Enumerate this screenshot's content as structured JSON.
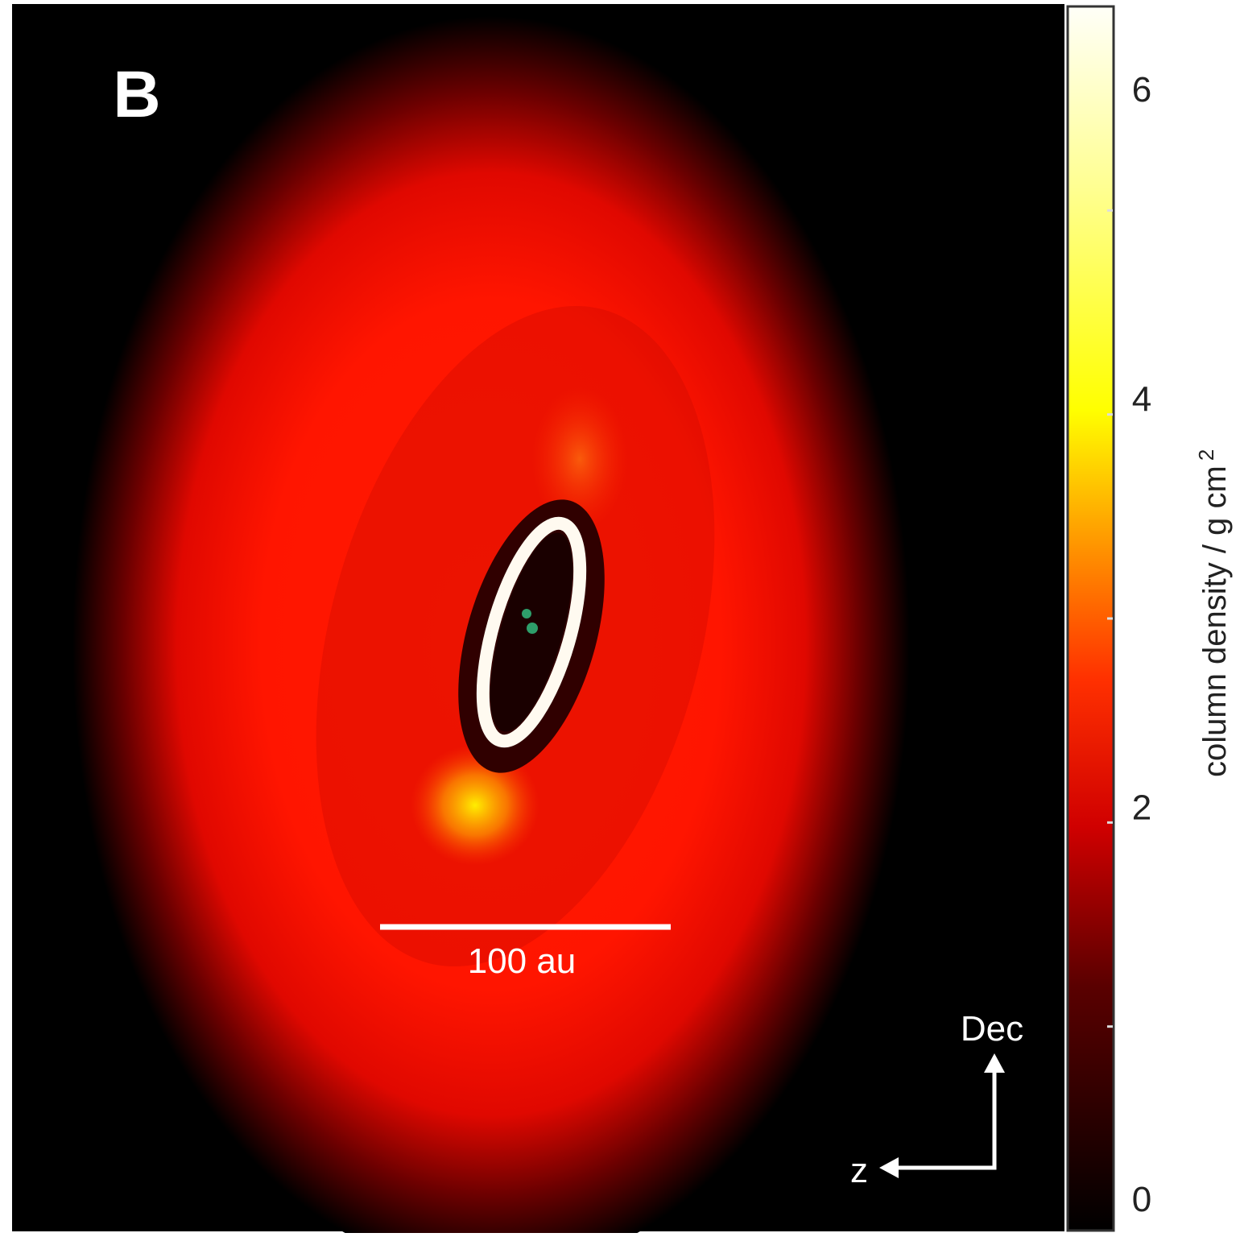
{
  "panel_label": "B",
  "scale_bar": "100 au",
  "compass": {
    "north": "Dec",
    "east": "z"
  },
  "chart_data": {
    "type": "image",
    "colorbar": {
      "label": "column density / g cm",
      "label_exponent": "2",
      "clim": [
        0,
        6
      ],
      "ticks": [
        0,
        2,
        4,
        6
      ],
      "minor_ticks": [
        1,
        2,
        3,
        4,
        5
      ]
    }
  }
}
